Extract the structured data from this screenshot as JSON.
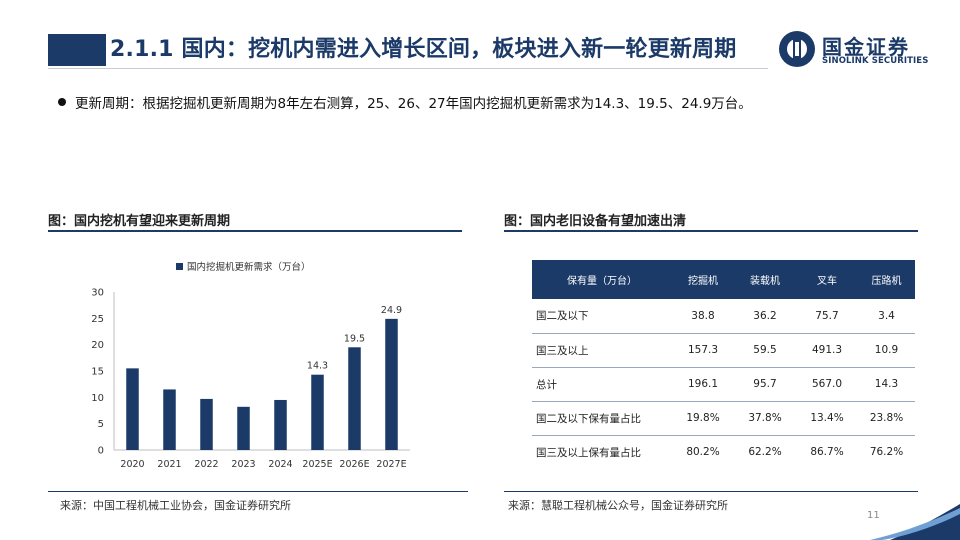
{
  "slide": {
    "title": "2.1.1 国内：挖机内需进入增长区间，板块进入新一轮更新周期",
    "bullet": "更新周期：根据挖掘机更新周期为8年左右测算，25、26、27年国内挖掘机更新需求为14.3、19.5、24.9万台。",
    "page_number": "11"
  },
  "logo": {
    "cn": "国金证券",
    "en": "SINOLINK SECURITIES"
  },
  "left_panel": {
    "caption": "图：国内挖机有望迎来更新周期",
    "source": "来源：中国工程机械工业协会，国金证券研究所"
  },
  "right_panel": {
    "caption": "图：国内老旧设备有望加速出清",
    "source": "来源：慧聪工程机械公众号，国金证券研究所",
    "table": {
      "headers": [
        "保有量（万台）",
        "挖掘机",
        "装载机",
        "叉车",
        "压路机"
      ],
      "rows": [
        [
          "国二及以下",
          "38.8",
          "36.2",
          "75.7",
          "3.4"
        ],
        [
          "国三及以上",
          "157.3",
          "59.5",
          "491.3",
          "10.9"
        ],
        [
          "总计",
          "196.1",
          "95.7",
          "567.0",
          "14.3"
        ],
        [
          "国二及以下保有量占比",
          "19.8%",
          "37.8%",
          "13.4%",
          "23.8%"
        ],
        [
          "国三及以上保有量占比",
          "80.2%",
          "62.2%",
          "86.7%",
          "76.2%"
        ]
      ]
    }
  },
  "chart_data": {
    "type": "bar",
    "categories": [
      "2020",
      "2021",
      "2022",
      "2023",
      "2024",
      "2025E",
      "2026E",
      "2027E"
    ],
    "series": [
      {
        "name": "国内挖掘机更新需求（万台）",
        "values": [
          15.5,
          11.5,
          9.7,
          8.2,
          9.5,
          14.3,
          19.5,
          24.9
        ],
        "labels": [
          "",
          "",
          "",
          "",
          "",
          "14.3",
          "19.5",
          "24.9"
        ]
      }
    ],
    "ylim": [
      0,
      30
    ],
    "yticks": [
      "0",
      "5",
      "10",
      "15",
      "20",
      "25",
      "30"
    ],
    "legend_position": "top",
    "grid": false,
    "colors": {
      "bar": "#1b3a68",
      "axis": "#bfbfbf",
      "text": "#333333"
    }
  },
  "theme": {
    "primary": "#1b3a68",
    "accent_light": "#6f9fd3"
  }
}
